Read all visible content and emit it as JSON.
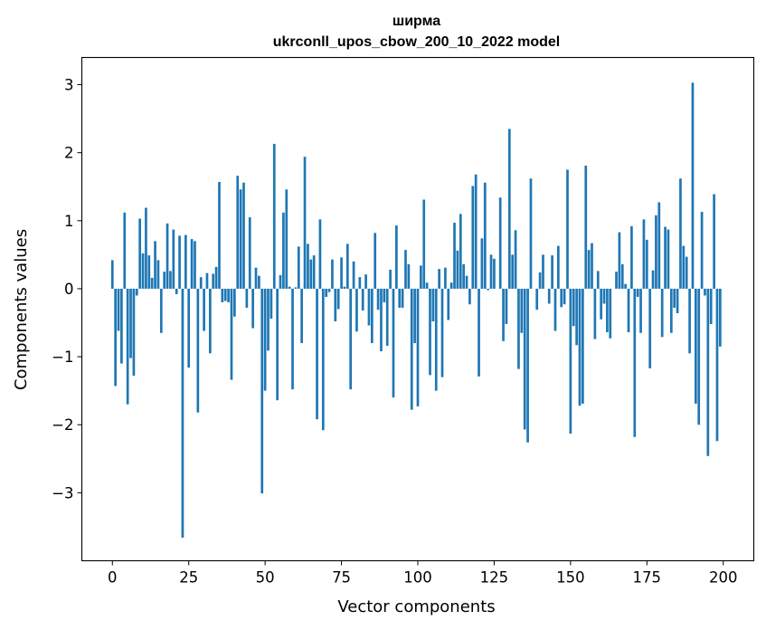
{
  "chart_data": {
    "type": "bar",
    "title_line1": "ширма",
    "title_line2": "ukrconll_upos_cbow_200_10_2022 model",
    "xlabel": "Vector components",
    "ylabel": "Components values",
    "xlim": [
      -10,
      210
    ],
    "ylim": [
      -4.0,
      3.4
    ],
    "xticks": [
      0,
      25,
      50,
      75,
      100,
      125,
      150,
      175,
      200
    ],
    "xtick_labels": [
      "0",
      "25",
      "50",
      "75",
      "100",
      "125",
      "150",
      "175",
      "200"
    ],
    "yticks": [
      -3,
      -2,
      -1,
      0,
      1,
      2,
      3
    ],
    "ytick_labels": [
      "−3",
      "−2",
      "−1",
      "0",
      "1",
      "2",
      "3"
    ],
    "bar_color": "#1f77b4",
    "grid": false,
    "values": [
      0.42,
      -1.43,
      -0.62,
      -1.1,
      1.12,
      -1.7,
      -1.02,
      -1.28,
      -0.1,
      1.03,
      0.52,
      1.19,
      0.49,
      0.16,
      0.7,
      0.42,
      -0.65,
      0.25,
      0.96,
      0.26,
      0.87,
      -0.08,
      0.78,
      -3.66,
      0.79,
      -1.16,
      0.73,
      0.7,
      -1.82,
      0.17,
      -0.62,
      0.23,
      -0.95,
      0.22,
      0.32,
      1.57,
      -0.2,
      -0.18,
      -0.2,
      -1.34,
      -0.41,
      1.66,
      1.46,
      1.56,
      -0.28,
      1.05,
      -0.58,
      0.31,
      0.19,
      -3.01,
      -1.5,
      -0.91,
      -0.44,
      2.13,
      -1.64,
      0.2,
      1.12,
      1.46,
      0.03,
      -1.48,
      0.02,
      0.62,
      -0.8,
      1.94,
      0.66,
      0.43,
      0.49,
      -1.92,
      1.02,
      -2.08,
      -0.12,
      -0.05,
      0.43,
      -0.48,
      -0.3,
      0.46,
      0.03,
      0.66,
      -1.48,
      0.4,
      -0.63,
      0.17,
      -0.32,
      0.21,
      -0.54,
      -0.8,
      0.82,
      -0.31,
      -0.92,
      -0.2,
      -0.84,
      0.28,
      -1.6,
      0.93,
      -0.28,
      -0.28,
      0.57,
      0.36,
      -1.78,
      -0.8,
      -1.73,
      0.34,
      1.31,
      0.09,
      -1.27,
      -0.48,
      -1.5,
      0.29,
      -1.3,
      0.31,
      -0.46,
      0.09,
      0.97,
      0.56,
      1.1,
      0.36,
      0.19,
      -0.23,
      1.51,
      1.68,
      -1.29,
      0.74,
      1.56,
      -0.02,
      0.5,
      0.44,
      0.0,
      1.34,
      -0.77,
      -0.52,
      2.35,
      0.5,
      0.86,
      -1.18,
      -0.65,
      -2.07,
      -2.26,
      1.62,
      0.0,
      -0.31,
      0.24,
      0.5,
      0.0,
      -0.22,
      0.49,
      -0.62,
      0.63,
      -0.27,
      -0.23,
      1.75,
      -2.13,
      -0.55,
      -0.83,
      -1.72,
      -1.69,
      1.81,
      0.57,
      0.67,
      -0.74,
      0.26,
      -0.45,
      -0.22,
      -0.64,
      -0.73,
      0.0,
      0.25,
      0.83,
      0.36,
      0.07,
      -0.64,
      0.92,
      -2.18,
      -0.12,
      -0.65,
      1.02,
      0.72,
      -1.17,
      0.27,
      1.08,
      1.27,
      -0.71,
      0.91,
      0.87,
      -0.65,
      -0.28,
      -0.36,
      1.62,
      0.63,
      0.47,
      -0.95,
      3.03,
      -1.69,
      -2.0,
      1.13,
      -0.1,
      -2.46,
      -0.52,
      1.39,
      -2.24,
      -0.85
    ]
  }
}
